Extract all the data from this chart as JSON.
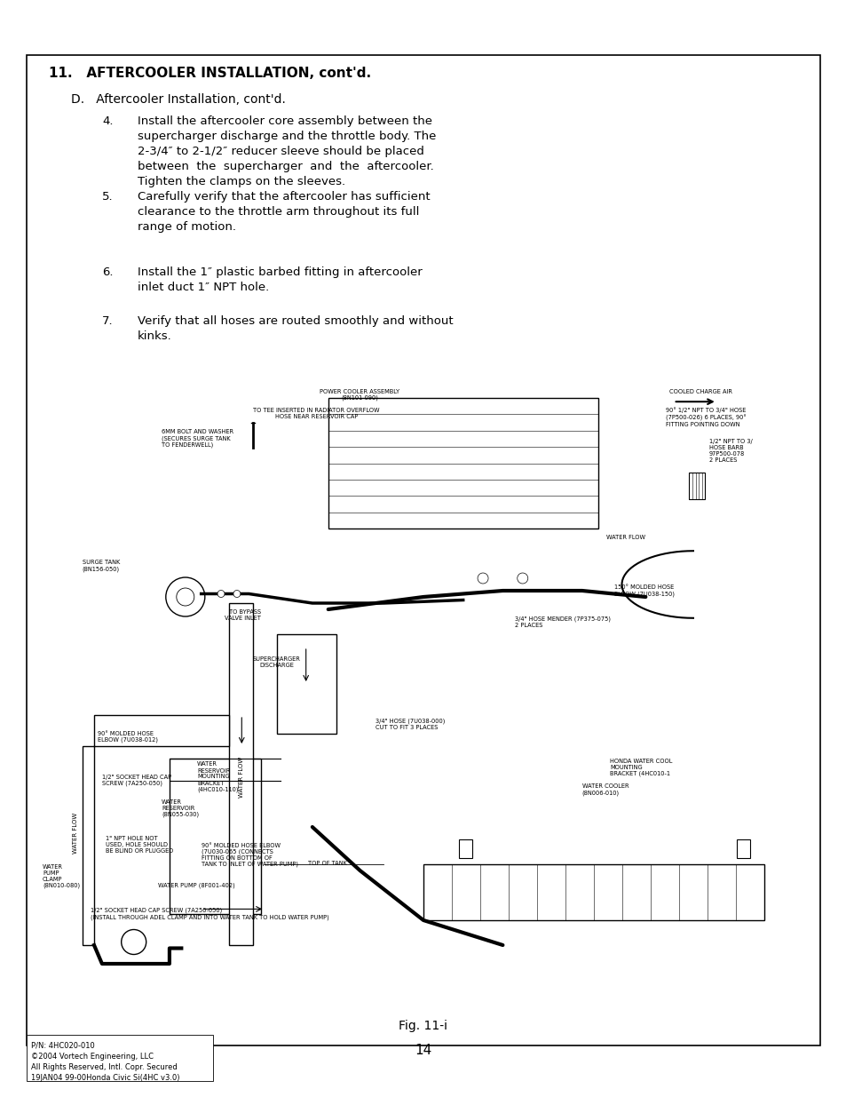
{
  "page_bg": "#ffffff",
  "border_color": "#000000",
  "text_color": "#000000",
  "title": "11.   AFTERCOOLER INSTALLATION, cont'd.",
  "subtitle_d": "D.   Aftercooler Installation, cont'd.",
  "items": [
    {
      "num": "4.",
      "text": "Install the aftercooler core assembly between the\nsupercharger discharge and the throttle body. The\n2-3/4″ to 2-1/2″ reducer sleeve should be placed\nbetween  the  supercharger  and  the  aftercooler.\nTighten the clamps on the sleeves."
    },
    {
      "num": "5.",
      "text": "Carefully verify that the aftercooler has sufficient\nclearance to the throttle arm throughout its full\nrange of motion."
    },
    {
      "num": "6.",
      "text": "Install the 1″ plastic barbed fitting in aftercooler\ninlet duct 1″ NPT hole."
    },
    {
      "num": "7.",
      "text": "Verify that all hoses are routed smoothly and without\nkinks."
    }
  ],
  "fig_caption": "Fig. 11-i",
  "page_number": "14",
  "footer_lines": [
    "P/N: 4HC020-010",
    "©2004 Vortech Engineering, LLC",
    "All Rights Reserved, Intl. Copr. Secured",
    "19JAN04 99-00Honda Civic Si(4HC v3.0)"
  ]
}
